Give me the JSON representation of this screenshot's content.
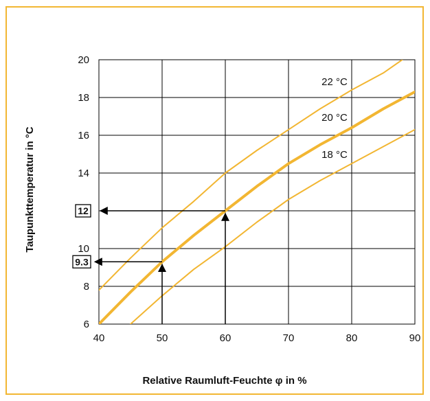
{
  "chart_data": {
    "type": "line",
    "title": "",
    "xlabel": "Relative Raumluft-Feuchte φ in %",
    "ylabel": "Taupunkttemperatur  in °C",
    "xlim": [
      40,
      90
    ],
    "ylim": [
      6,
      20
    ],
    "xticks": [
      40,
      50,
      60,
      70,
      80,
      90
    ],
    "yticks": [
      6,
      8,
      10,
      12,
      14,
      16,
      18,
      20
    ],
    "grid": true,
    "colors": {
      "curve": "#f2b632",
      "frame": "#f2b632",
      "grid": "#000000",
      "arrow": "#000000"
    },
    "series": [
      {
        "name": "22 °C",
        "emphasis": false,
        "points": [
          [
            40,
            7.8
          ],
          [
            45,
            9.5
          ],
          [
            50,
            11.1
          ],
          [
            55,
            12.5
          ],
          [
            60,
            14.0
          ],
          [
            65,
            15.2
          ],
          [
            70,
            16.3
          ],
          [
            75,
            17.4
          ],
          [
            80,
            18.4
          ],
          [
            85,
            19.3
          ],
          [
            88,
            20.0
          ]
        ]
      },
      {
        "name": "20 °C",
        "emphasis": true,
        "points": [
          [
            40,
            6.0
          ],
          [
            45,
            7.7
          ],
          [
            50,
            9.3
          ],
          [
            55,
            10.7
          ],
          [
            60,
            12.0
          ],
          [
            65,
            13.3
          ],
          [
            70,
            14.5
          ],
          [
            75,
            15.5
          ],
          [
            80,
            16.4
          ],
          [
            85,
            17.4
          ],
          [
            90,
            18.3
          ]
        ]
      },
      {
        "name": "18 °C",
        "emphasis": false,
        "points": [
          [
            45,
            6.0
          ],
          [
            50,
            7.5
          ],
          [
            55,
            8.9
          ],
          [
            60,
            10.1
          ],
          [
            65,
            11.4
          ],
          [
            70,
            12.6
          ],
          [
            75,
            13.6
          ],
          [
            80,
            14.5
          ],
          [
            85,
            15.4
          ],
          [
            90,
            16.3
          ]
        ]
      }
    ],
    "annotations": [
      {
        "x": 50,
        "y": 9.3,
        "label": "9.3"
      },
      {
        "x": 60,
        "y": 12,
        "label": "12"
      }
    ]
  }
}
